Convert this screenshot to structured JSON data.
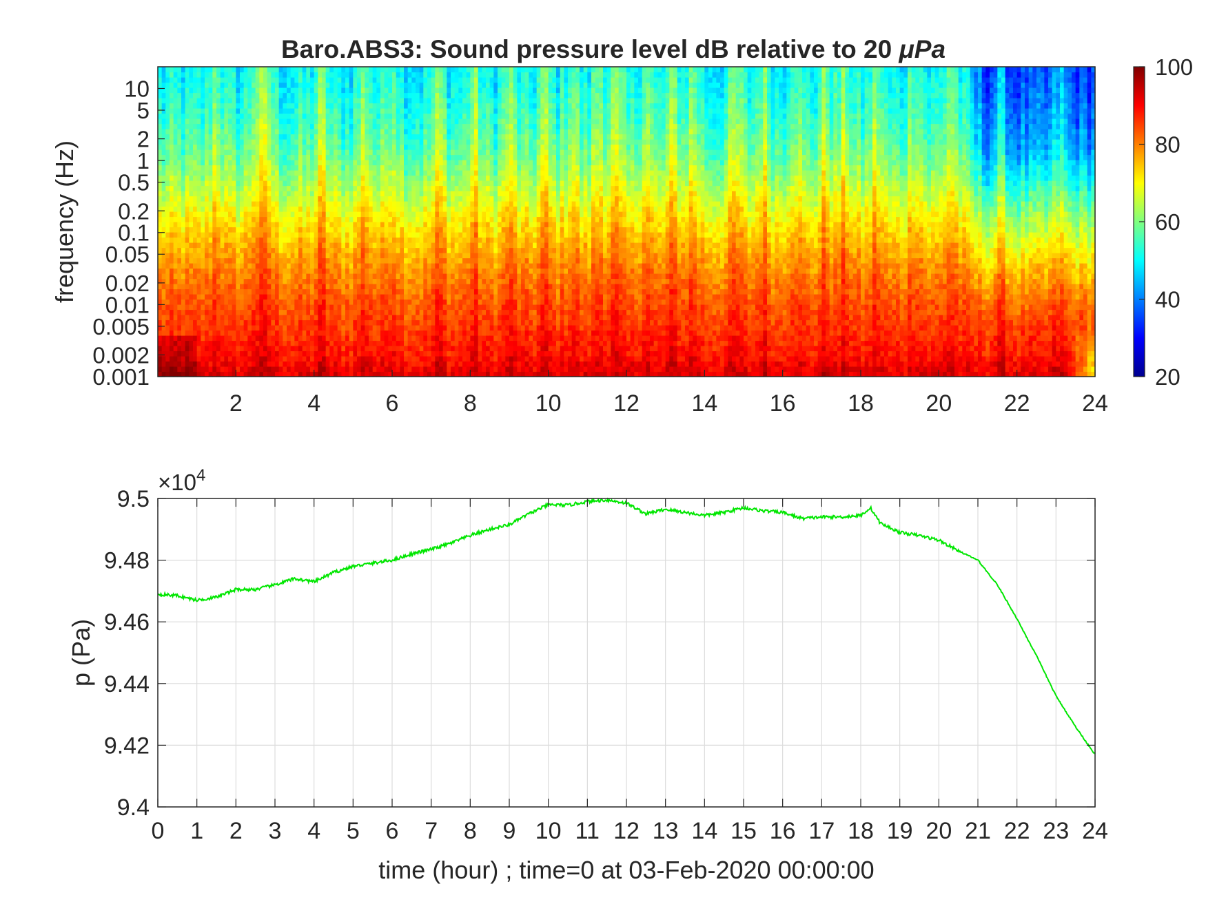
{
  "chart_data": [
    {
      "type": "heatmap",
      "title": "Baro.ABS3: Sound pressure level dB relative to 20 μPa",
      "title_prefix": "Baro.ABS3: Sound pressure level dB relative to 20 ",
      "title_unit": "μPa",
      "xlabel": "",
      "ylabel": "frequency (Hz)",
      "xlim": [
        0,
        24
      ],
      "x_ticks": [
        "2",
        "4",
        "6",
        "8",
        "10",
        "12",
        "14",
        "16",
        "18",
        "20",
        "22",
        "24"
      ],
      "ylim": [
        0.001,
        20
      ],
      "y_scale": "log",
      "y_ticks": [
        "0.001",
        "0.002",
        "0.005",
        "0.01",
        "0.02",
        "0.05",
        "0.1",
        "0.2",
        "0.5",
        "1",
        "2",
        "5",
        "10"
      ],
      "colorbar": {
        "range": [
          20,
          100
        ],
        "ticks": [
          "20",
          "40",
          "60",
          "80",
          "100"
        ],
        "colormap": "jet"
      },
      "hot_hours": [
        1.5,
        2.5,
        2.8,
        4.2,
        5.3,
        6.0,
        7.2,
        8.1,
        9.0,
        9.9,
        10.6,
        11.3,
        11.7,
        12.5,
        13.2,
        13.7,
        14.8,
        15.5,
        16.3,
        17.1,
        17.6,
        18.4,
        19.4,
        20.3,
        21.6,
        23.1
      ],
      "levels_db": [
        [
          0.001,
          92
        ],
        [
          0.002,
          88
        ],
        [
          0.005,
          85
        ],
        [
          0.01,
          83
        ],
        [
          0.02,
          80
        ],
        [
          0.05,
          76
        ],
        [
          0.1,
          72
        ],
        [
          0.2,
          68
        ],
        [
          0.5,
          62
        ],
        [
          1,
          58
        ],
        [
          2,
          55
        ],
        [
          5,
          52
        ],
        [
          10,
          50
        ],
        [
          20,
          49
        ]
      ]
    },
    {
      "type": "line",
      "title": "",
      "xlabel": "time (hour) ; time=0 at 03-Feb-2020 00:00:00",
      "ylabel": "p (Pa)",
      "xlim": [
        0,
        24
      ],
      "ylim": [
        94000,
        95000
      ],
      "y_exponent_base": "×10",
      "y_exponent_power": "4",
      "x_ticks": [
        "0",
        "1",
        "2",
        "3",
        "4",
        "5",
        "6",
        "7",
        "8",
        "9",
        "10",
        "11",
        "12",
        "13",
        "14",
        "15",
        "16",
        "17",
        "18",
        "19",
        "20",
        "21",
        "22",
        "23",
        "24"
      ],
      "y_ticks": [
        "9.4",
        "9.42",
        "9.44",
        "9.46",
        "9.48",
        "9.5"
      ],
      "grid": true,
      "series": [
        {
          "color": "#00e600",
          "x": [
            0,
            0.5,
            1,
            1.5,
            2,
            2.5,
            3,
            3.5,
            4,
            4.5,
            5,
            5.5,
            6,
            6.5,
            7,
            7.5,
            8,
            8.5,
            9,
            9.5,
            10,
            10.5,
            11,
            11.5,
            12,
            12.5,
            13,
            13.5,
            14,
            14.5,
            15,
            15.5,
            16,
            16.5,
            17,
            17.5,
            18,
            18.25,
            18.5,
            19,
            19.5,
            20,
            20.5,
            21,
            21.5,
            22,
            22.5,
            23,
            23.5,
            24
          ],
          "y": [
            94690,
            94685,
            94670,
            94680,
            94705,
            94705,
            94720,
            94740,
            94730,
            94760,
            94780,
            94790,
            94800,
            94820,
            94835,
            94855,
            94880,
            94900,
            94915,
            94950,
            94980,
            94978,
            94990,
            94995,
            94985,
            94950,
            94965,
            94955,
            94945,
            94955,
            94970,
            94960,
            94955,
            94935,
            94940,
            94940,
            94945,
            94970,
            94920,
            94890,
            94880,
            94865,
            94830,
            94800,
            94720,
            94610,
            94490,
            94360,
            94260,
            94170
          ]
        }
      ]
    }
  ]
}
